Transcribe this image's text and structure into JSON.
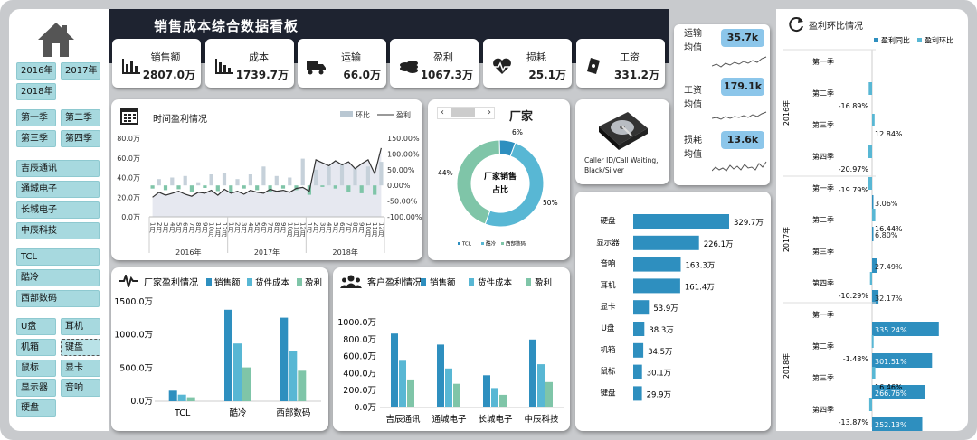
{
  "title": "销售成本综合数据看板",
  "filters": {
    "years": [
      "2016年",
      "2017年",
      "2018年"
    ],
    "quarters": [
      "第一季",
      "第二季",
      "第三季",
      "第四季"
    ],
    "customers": [
      "吉辰通讯",
      "通城电子",
      "长城电子",
      "中辰科技"
    ],
    "vendors": [
      "TCL",
      "酷冷",
      "西部数码"
    ],
    "products": [
      "U盘",
      "耳机",
      "机箱",
      "键盘",
      "鼠标",
      "显卡",
      "显示器",
      "音响",
      "硬盘"
    ]
  },
  "kpis": [
    {
      "label": "销售额",
      "value": "2807.0万",
      "icon": "bar-chart-icon"
    },
    {
      "label": "成本",
      "value": "1739.7万",
      "icon": "bar-trend-icon"
    },
    {
      "label": "运输",
      "value": "66.0万",
      "icon": "truck-icon"
    },
    {
      "label": "盈利",
      "value": "1067.3万",
      "icon": "coins-icon"
    },
    {
      "label": "损耗",
      "value": "25.1万",
      "icon": "heartbeat-icon"
    },
    {
      "label": "工资",
      "value": "331.2万",
      "icon": "cash-icon"
    }
  ],
  "averages": [
    {
      "label1": "运输",
      "label2": "均值",
      "value": "35.7k"
    },
    {
      "label1": "工资",
      "label2": "均值",
      "value": "179.1k"
    },
    {
      "label1": "损耗",
      "label2": "均值",
      "value": "13.6k"
    }
  ],
  "product_card": {
    "caption": "Caller ID/Call Waiting, Black/Silver"
  },
  "colors": {
    "navy": "#1e2330",
    "teal": "#a7d9df",
    "blue": "#2e8fbf",
    "lightblue": "#58b7d4",
    "green": "#7fc5a8",
    "gray": "#c6d1da"
  },
  "chart_data": [
    {
      "id": "time_profit",
      "type": "bar",
      "title": "时间盈利情况",
      "legend": [
        "环比",
        "盈利"
      ],
      "legend_position": "top-right",
      "months": [
        "1月",
        "2月",
        "3月",
        "4月",
        "5月",
        "6月",
        "7月",
        "8月",
        "9月",
        "10月",
        "11月",
        "12月",
        "1月",
        "2月",
        "3月",
        "4月",
        "5月",
        "6月",
        "7月",
        "8月",
        "9月",
        "10月",
        "11月",
        "12月",
        "1月",
        "2月",
        "3月",
        "4月",
        "5月",
        "6月",
        "7月",
        "8月",
        "9月",
        "10月",
        "11月",
        "12月"
      ],
      "years": [
        "2016年",
        "2017年",
        "2018年"
      ],
      "left_ticks": [
        "80.0万",
        "60.0万",
        "40.0万",
        "20.0万",
        "0.0万"
      ],
      "right_ticks": [
        "150.00%",
        "100.00%",
        "50.00%",
        "0.00%",
        "-50.00%",
        "-100.00%"
      ],
      "ylim_left": [
        0,
        80
      ],
      "ylim_right": [
        -100,
        150
      ],
      "profit": [
        20,
        25,
        22,
        24,
        26,
        23,
        21,
        25,
        24,
        27,
        22,
        28,
        24,
        26,
        23,
        27,
        25,
        24,
        28,
        26,
        27,
        25,
        29,
        30,
        26,
        58,
        55,
        52,
        57,
        53,
        56,
        49,
        54,
        58,
        44,
        70
      ],
      "mom": [
        -10,
        20,
        -15,
        25,
        -12,
        30,
        -20,
        10,
        -8,
        35,
        -18,
        40,
        -25,
        20,
        -10,
        35,
        -15,
        60,
        -20,
        30,
        -10,
        25,
        -15,
        85,
        -30,
        50,
        -5,
        60,
        -10,
        70,
        -20,
        55,
        -25,
        60,
        -30,
        75
      ]
    },
    {
      "id": "vendor_share",
      "type": "pie",
      "title": "厂家",
      "center_label": "厂家销售占比",
      "categories": [
        "TCL",
        "酷冷",
        "西部数码"
      ],
      "values": [
        6,
        50,
        44
      ],
      "labels": [
        "6%",
        "50%",
        "44%"
      ]
    },
    {
      "id": "vendor_profit",
      "type": "bar",
      "title": "厂家盈利情况",
      "categories": [
        "TCL",
        "酷冷",
        "西部数码"
      ],
      "series": [
        {
          "name": "销售额",
          "values": [
            160,
            1380,
            1260
          ]
        },
        {
          "name": "货件成本",
          "values": [
            100,
            870,
            750
          ]
        },
        {
          "name": "盈利",
          "values": [
            60,
            510,
            460
          ]
        }
      ],
      "ticks": [
        "1500.0万",
        "1000.0万",
        "500.0万",
        "0.0万"
      ],
      "ylim": [
        0,
        1500
      ]
    },
    {
      "id": "customer_profit",
      "type": "bar",
      "title": "客户盈利情况",
      "categories": [
        "吉辰通讯",
        "通城电子",
        "长城电子",
        "中辰科技"
      ],
      "series": [
        {
          "name": "销售额",
          "values": [
            870,
            740,
            380,
            800
          ]
        },
        {
          "name": "货件成本",
          "values": [
            550,
            460,
            230,
            510
          ]
        },
        {
          "name": "盈利",
          "values": [
            320,
            280,
            150,
            300
          ]
        }
      ],
      "ticks": [
        "1000.0万",
        "800.0万",
        "600.0万",
        "400.0万",
        "200.0万",
        "0.0万"
      ],
      "ylim": [
        0,
        1000
      ]
    },
    {
      "id": "product_sales",
      "type": "bar",
      "orientation": "horizontal",
      "categories": [
        "硬盘",
        "显示器",
        "音响",
        "耳机",
        "显卡",
        "U盘",
        "机箱",
        "鼠标",
        "键盘"
      ],
      "values": [
        329.7,
        226.1,
        163.3,
        161.4,
        53.9,
        38.3,
        34.5,
        30.1,
        29.9
      ],
      "labels": [
        "329.7万",
        "226.1万",
        "163.3万",
        "161.4万",
        "53.9万",
        "38.3万",
        "34.5万",
        "30.1万",
        "29.9万"
      ]
    },
    {
      "id": "quarter_ratio",
      "type": "bar",
      "orientation": "horizontal",
      "title": "盈利环比情况",
      "legend": [
        "盈利同比",
        "盈利环比"
      ],
      "legend_position": "top-right",
      "years": [
        "2016年",
        "2017年",
        "2018年"
      ],
      "quarters": [
        "第一季",
        "第二季",
        "第三季",
        "第四季"
      ],
      "yoy": [
        null,
        null,
        null,
        null,
        3.06,
        6.8,
        27.49,
        32.17,
        335.24,
        301.51,
        266.76,
        252.13
      ],
      "yoy_labels": [
        "",
        "",
        "",
        "",
        "3.06%",
        "6.80%",
        "27.49%",
        "32.17%",
        "335.24%",
        "301.51%",
        "266.76%",
        "252.13%"
      ],
      "qoq": [
        null,
        -16.89,
        12.84,
        -20.97,
        -19.79,
        16.44,
        null,
        -10.29,
        null,
        -1.48,
        16.46,
        -13.87
      ],
      "qoq_labels": [
        "",
        "-16.89%",
        "12.84%",
        "-20.97%",
        "-19.79%",
        "16.44%",
        "",
        "-10.29%",
        "",
        "-1.48%",
        "16.46%",
        "-13.87%"
      ]
    }
  ]
}
